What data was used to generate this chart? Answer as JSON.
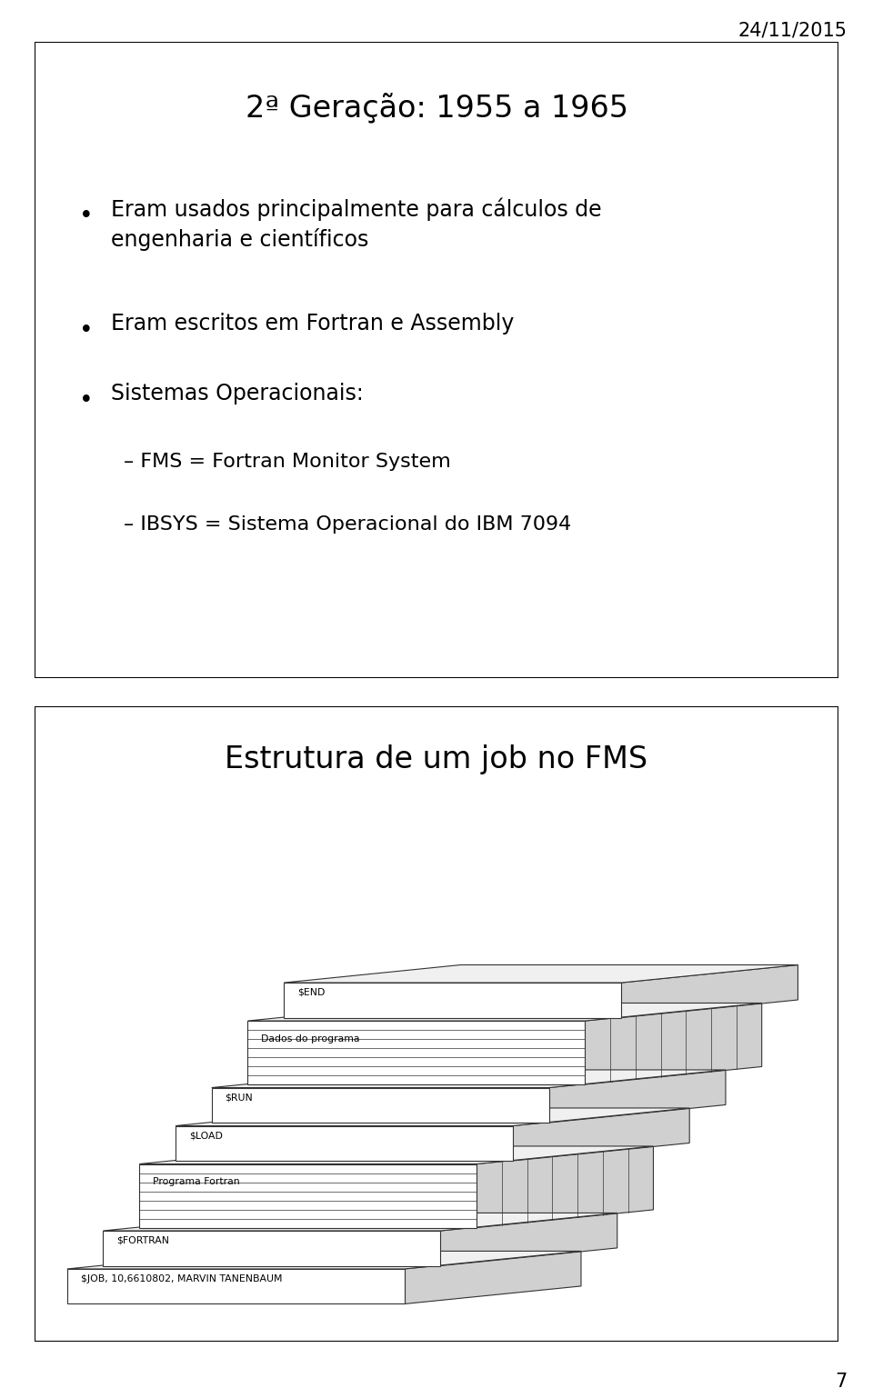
{
  "date_label": "24/11/2015",
  "page_number": "7",
  "slide1_title": "2ª Geração: 1955 a 1965",
  "slide1_bullets": [
    "Eram usados principalmente para cálculos de\nengenharia e científicos",
    "Eram escritos em Fortran e Assembly",
    "Sistemas Operacionais:"
  ],
  "slide1_subbullets": [
    "FMS = Fortran Monitor System",
    "IBSYS = Sistema Operacional do IBM 7094"
  ],
  "slide2_title": "Estrutura de um job no FMS",
  "background_color": "#ffffff",
  "text_color": "#000000",
  "title_fontsize": 24,
  "body_fontsize": 17,
  "sub_fontsize": 16,
  "slide2_title_fontsize": 24,
  "date_fontsize": 15
}
